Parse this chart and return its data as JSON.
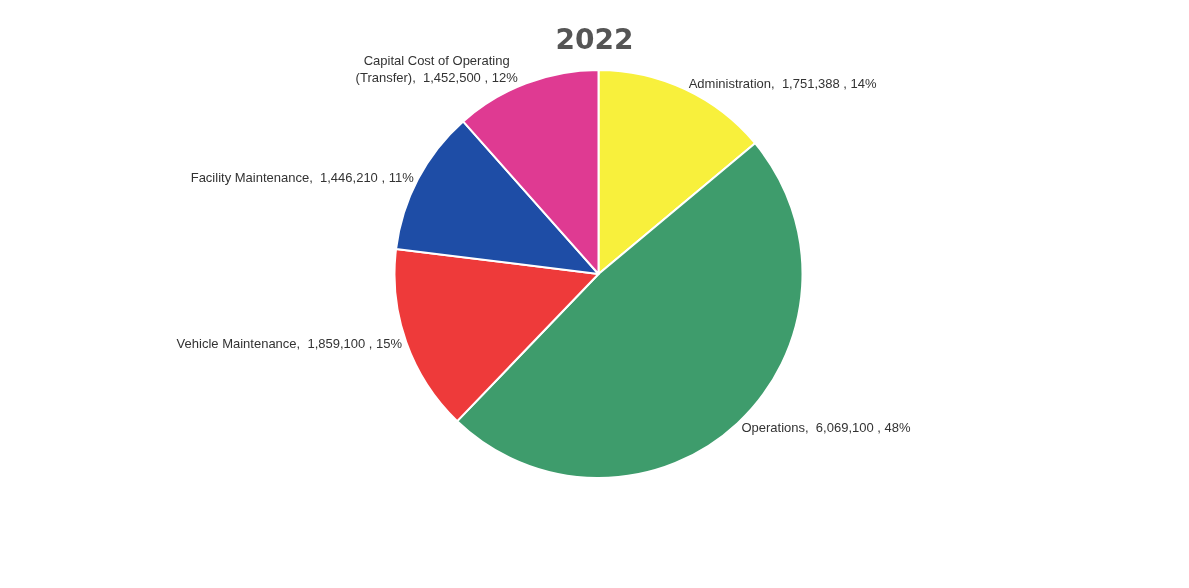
{
  "chart_data": {
    "type": "pie",
    "title": "2022",
    "categories": [
      "Administration",
      "Operations",
      "Vehicle Maintenance",
      "Facility Maintenance",
      "Capital Cost of Operating (Transfer)"
    ],
    "values": [
      1751388,
      6069100,
      1859100,
      1446210,
      1452500
    ],
    "value_labels": [
      "1,751,388 , 14%",
      "6,069,100 , 48%",
      "1,859,100 , 15%",
      "1,446,210 , 11%",
      "1,452,500 , 12%"
    ],
    "colors": [
      "#f8f03c",
      "#3e9c6c",
      "#ee3a3a",
      "#1e4da6",
      "#df3a92"
    ],
    "legend": false
  }
}
